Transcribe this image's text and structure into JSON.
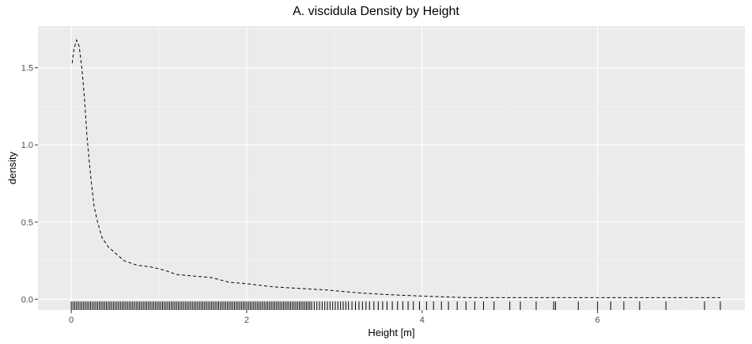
{
  "chart_data": {
    "type": "line",
    "title": "A. viscidula Density by Height",
    "xlabel": "Height [m]",
    "ylabel": "density",
    "xlim": [
      -0.38,
      7.68
    ],
    "ylim": [
      -0.07,
      1.77
    ],
    "x_ticks": [
      0,
      2,
      4,
      6
    ],
    "y_ticks": [
      0.0,
      0.5,
      1.0,
      1.5
    ],
    "x_tick_labels": [
      "0",
      "2",
      "4",
      "6"
    ],
    "y_tick_labels": [
      "0.0",
      "0.5",
      "1.0",
      "1.5"
    ],
    "grid": true,
    "colors": {
      "panel": "#ebebeb",
      "grid_major": "#ffffff",
      "line": "#000000",
      "rug": "#000000"
    },
    "series": [
      {
        "style": "dashed",
        "x": [
          0.01,
          0.03,
          0.06,
          0.09,
          0.12,
          0.15,
          0.18,
          0.22,
          0.26,
          0.3,
          0.35,
          0.42,
          0.5,
          0.6,
          0.75,
          0.9,
          1.05,
          1.2,
          1.4,
          1.6,
          1.8,
          2.0,
          2.3,
          2.6,
          2.9,
          3.1,
          3.3,
          3.6,
          4.0,
          4.5,
          5.0,
          5.5,
          5.8,
          6.2,
          6.6,
          7.0,
          7.4
        ],
        "y": [
          1.53,
          1.62,
          1.68,
          1.64,
          1.5,
          1.3,
          1.05,
          0.8,
          0.6,
          0.5,
          0.4,
          0.34,
          0.3,
          0.25,
          0.22,
          0.21,
          0.19,
          0.16,
          0.15,
          0.14,
          0.11,
          0.1,
          0.08,
          0.07,
          0.06,
          0.05,
          0.04,
          0.03,
          0.02,
          0.01,
          0.01,
          0.01,
          0.01,
          0.01,
          0.01,
          0.01,
          0.01
        ]
      }
    ],
    "rug_x": [
      0.0,
      0.02,
      0.04,
      0.06,
      0.08,
      0.1,
      0.12,
      0.14,
      0.16,
      0.18,
      0.2,
      0.22,
      0.24,
      0.26,
      0.28,
      0.3,
      0.32,
      0.34,
      0.36,
      0.38,
      0.4,
      0.42,
      0.44,
      0.46,
      0.48,
      0.5,
      0.52,
      0.54,
      0.56,
      0.58,
      0.6,
      0.62,
      0.64,
      0.66,
      0.68,
      0.7,
      0.72,
      0.74,
      0.76,
      0.78,
      0.8,
      0.82,
      0.84,
      0.86,
      0.88,
      0.9,
      0.92,
      0.94,
      0.96,
      0.98,
      1.0,
      1.02,
      1.04,
      1.06,
      1.08,
      1.1,
      1.12,
      1.14,
      1.16,
      1.18,
      1.2,
      1.22,
      1.24,
      1.26,
      1.28,
      1.3,
      1.32,
      1.34,
      1.36,
      1.38,
      1.4,
      1.42,
      1.44,
      1.46,
      1.48,
      1.5,
      1.52,
      1.54,
      1.56,
      1.58,
      1.6,
      1.62,
      1.64,
      1.66,
      1.68,
      1.7,
      1.72,
      1.74,
      1.76,
      1.78,
      1.8,
      1.82,
      1.84,
      1.86,
      1.88,
      1.9,
      1.92,
      1.94,
      1.96,
      1.98,
      2.0,
      2.02,
      2.04,
      2.06,
      2.08,
      2.1,
      2.12,
      2.14,
      2.16,
      2.18,
      2.2,
      2.22,
      2.24,
      2.26,
      2.28,
      2.3,
      2.32,
      2.34,
      2.36,
      2.38,
      2.4,
      2.42,
      2.44,
      2.46,
      2.48,
      2.5,
      2.52,
      2.54,
      2.56,
      2.58,
      2.6,
      2.62,
      2.64,
      2.66,
      2.68,
      2.7,
      2.72,
      2.74,
      2.77,
      2.8,
      2.83,
      2.86,
      2.89,
      2.92,
      2.95,
      2.98,
      3.01,
      3.04,
      3.07,
      3.1,
      3.13,
      3.16,
      3.2,
      3.24,
      3.28,
      3.32,
      3.36,
      3.4,
      3.45,
      3.5,
      3.55,
      3.6,
      3.66,
      3.72,
      3.78,
      3.84,
      3.9,
      3.97,
      4.05,
      4.13,
      4.22,
      4.3,
      4.4,
      4.5,
      4.6,
      4.7,
      4.82,
      5.0,
      5.12,
      5.3,
      5.5,
      5.52,
      5.78,
      6.0,
      6.15,
      6.3,
      6.48,
      6.78,
      7.22,
      7.4
    ]
  }
}
